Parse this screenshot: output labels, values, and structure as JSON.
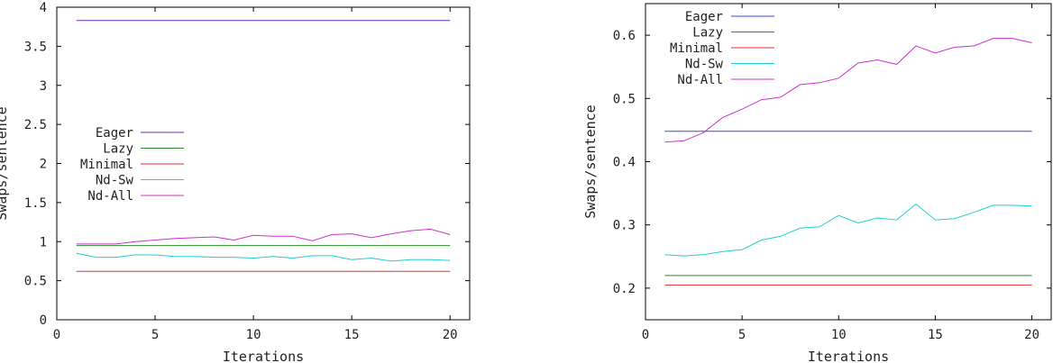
{
  "chart_data": [
    {
      "type": "line",
      "xlabel": "Iterations",
      "ylabel": "Swaps/sentence",
      "xlim": [
        0,
        21
      ],
      "ylim": [
        0,
        4
      ],
      "xticks": [
        0,
        5,
        10,
        15,
        20
      ],
      "yticks": [
        0,
        0.5,
        1,
        1.5,
        2,
        2.5,
        3,
        3.5,
        4
      ],
      "ytick_labels": [
        "0",
        "0.5",
        "1",
        "1.5",
        "2",
        "2.5",
        "3",
        "3.5",
        "4"
      ],
      "grid": false,
      "legend_position": "center-left",
      "x": [
        1,
        2,
        3,
        4,
        5,
        6,
        7,
        8,
        9,
        10,
        11,
        12,
        13,
        14,
        15,
        16,
        17,
        18,
        19,
        20
      ],
      "series": [
        {
          "name": "Eager",
          "color": "#6b2fb0",
          "values": [
            3.83,
            3.83,
            3.83,
            3.83,
            3.83,
            3.83,
            3.83,
            3.83,
            3.83,
            3.83,
            3.83,
            3.83,
            3.83,
            3.83,
            3.83,
            3.83,
            3.83,
            3.83,
            3.83,
            3.83
          ]
        },
        {
          "name": "Lazy",
          "color": "#2e8b2e",
          "values": [
            0.95,
            0.95,
            0.95,
            0.95,
            0.95,
            0.95,
            0.95,
            0.95,
            0.95,
            0.95,
            0.95,
            0.95,
            0.95,
            0.95,
            0.95,
            0.95,
            0.95,
            0.95,
            0.95,
            0.95
          ]
        },
        {
          "name": "Minimal",
          "color": "#e03030",
          "values": [
            0.62,
            0.62,
            0.62,
            0.62,
            0.62,
            0.62,
            0.62,
            0.62,
            0.62,
            0.62,
            0.62,
            0.62,
            0.62,
            0.62,
            0.62,
            0.62,
            0.62,
            0.62,
            0.62,
            0.62
          ]
        },
        {
          "name": "Nd-Sw",
          "color": "#20d0d0",
          "values": [
            0.85,
            0.8,
            0.8,
            0.83,
            0.83,
            0.81,
            0.81,
            0.8,
            0.8,
            0.79,
            0.81,
            0.79,
            0.82,
            0.82,
            0.77,
            0.79,
            0.75,
            0.77,
            0.77,
            0.76
          ]
        },
        {
          "name": "Nd-All",
          "color": "#d030d0",
          "values": [
            0.97,
            0.97,
            0.97,
            1.0,
            1.02,
            1.04,
            1.05,
            1.06,
            1.02,
            1.08,
            1.07,
            1.07,
            1.01,
            1.09,
            1.1,
            1.05,
            1.1,
            1.14,
            1.16,
            1.09
          ]
        }
      ]
    },
    {
      "type": "line",
      "xlabel": "Iterations",
      "ylabel": "Swaps/sentence",
      "xlim": [
        0,
        21
      ],
      "ylim": [
        0.15,
        0.65
      ],
      "xticks": [
        0,
        5,
        10,
        15,
        20
      ],
      "yticks": [
        0.2,
        0.3,
        0.4,
        0.5,
        0.6
      ],
      "ytick_labels": [
        "0.2",
        "0.3",
        "0.4",
        "0.5",
        "0.6"
      ],
      "grid": false,
      "legend_position": "top-left",
      "x": [
        1,
        2,
        3,
        4,
        5,
        6,
        7,
        8,
        9,
        10,
        11,
        12,
        13,
        14,
        15,
        16,
        17,
        18,
        19,
        20
      ],
      "series": [
        {
          "name": "Eager",
          "color": "#4040e0",
          "values": [
            0.448,
            0.448,
            0.448,
            0.448,
            0.448,
            0.448,
            0.448,
            0.448,
            0.448,
            0.448,
            0.448,
            0.448,
            0.448,
            0.448,
            0.448,
            0.448,
            0.448,
            0.448,
            0.448,
            0.448
          ]
        },
        {
          "name": "Lazy",
          "color": "#2e8b2e",
          "values": [
            0.22,
            0.22,
            0.22,
            0.22,
            0.22,
            0.22,
            0.22,
            0.22,
            0.22,
            0.22,
            0.22,
            0.22,
            0.22,
            0.22,
            0.22,
            0.22,
            0.22,
            0.22,
            0.22,
            0.22
          ]
        },
        {
          "name": "Minimal",
          "color": "#e03030",
          "values": [
            0.205,
            0.205,
            0.205,
            0.205,
            0.205,
            0.205,
            0.205,
            0.205,
            0.205,
            0.205,
            0.205,
            0.205,
            0.205,
            0.205,
            0.205,
            0.205,
            0.205,
            0.205,
            0.205,
            0.205
          ]
        },
        {
          "name": "Nd-Sw",
          "color": "#20d0d0",
          "values": [
            0.253,
            0.251,
            0.253,
            0.258,
            0.261,
            0.276,
            0.282,
            0.295,
            0.297,
            0.315,
            0.303,
            0.311,
            0.308,
            0.333,
            0.308,
            0.31,
            0.32,
            0.331,
            0.331,
            0.33
          ]
        },
        {
          "name": "Nd-All",
          "color": "#d030d0",
          "values": [
            0.431,
            0.433,
            0.446,
            0.47,
            0.483,
            0.498,
            0.502,
            0.522,
            0.525,
            0.532,
            0.556,
            0.561,
            0.554,
            0.583,
            0.572,
            0.581,
            0.583,
            0.595,
            0.595,
            0.588
          ]
        }
      ]
    }
  ]
}
